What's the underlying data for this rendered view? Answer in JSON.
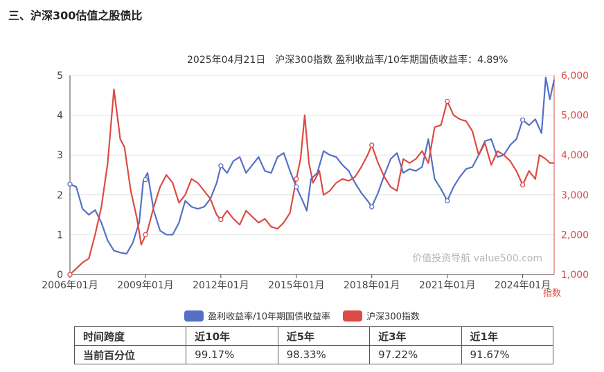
{
  "section_title": "三、沪深300估值之股债比",
  "subtitle": "2025年04月21日　沪深300指数 盈利收益率/10年期国债收益率：4.89%",
  "watermark": "价值投资导航 value500.com",
  "legend": [
    {
      "label": "盈利收益率/10年期国债收益率",
      "color": "#5470c6"
    },
    {
      "label": "沪深300指数",
      "color": "#dc4b43"
    }
  ],
  "table": {
    "header": [
      "时间跨度",
      "近10年",
      "近5年",
      "近3年",
      "近1年"
    ],
    "row": [
      "当前百分位",
      "99.17%",
      "98.33%",
      "97.22%",
      "91.67%"
    ]
  },
  "chart_data": {
    "type": "line",
    "xlabel": "",
    "x_ticks": [
      "2006年01月",
      "2009年01月",
      "2012年01月",
      "2015年01月",
      "2018年01月",
      "2021年01月",
      "2024年01月"
    ],
    "x_range": [
      "2006-01",
      "2025-04"
    ],
    "y_left": {
      "min": 0,
      "max": 5,
      "ticks": [
        0,
        1,
        2,
        3,
        4,
        5
      ],
      "color": "#333333"
    },
    "y_right": {
      "min": 1000,
      "max": 6000,
      "ticks": [
        "1,000",
        "2,000",
        "3,000",
        "4,000",
        "5,000",
        "6,000"
      ],
      "label": "指数",
      "color": "#dc4b43"
    },
    "grid": true,
    "series": [
      {
        "name": "盈利收益率/10年期国债收益率",
        "axis": "left",
        "color": "#5470c6",
        "points": [
          [
            "2006-01",
            2.27
          ],
          [
            "2006-04",
            2.2
          ],
          [
            "2006-07",
            1.65
          ],
          [
            "2006-10",
            1.5
          ],
          [
            "2007-01",
            1.62
          ],
          [
            "2007-04",
            1.3
          ],
          [
            "2007-07",
            0.85
          ],
          [
            "2007-10",
            0.6
          ],
          [
            "2008-01",
            0.55
          ],
          [
            "2008-04",
            0.52
          ],
          [
            "2008-07",
            0.8
          ],
          [
            "2008-10",
            1.3
          ],
          [
            "2008-12",
            2.35
          ],
          [
            "2009-02",
            2.55
          ],
          [
            "2009-05",
            1.6
          ],
          [
            "2009-08",
            1.1
          ],
          [
            "2009-11",
            1.0
          ],
          [
            "2010-02",
            1.0
          ],
          [
            "2010-05",
            1.3
          ],
          [
            "2010-08",
            1.85
          ],
          [
            "2010-11",
            1.7
          ],
          [
            "2011-02",
            1.65
          ],
          [
            "2011-05",
            1.7
          ],
          [
            "2011-08",
            1.9
          ],
          [
            "2011-11",
            2.3
          ],
          [
            "2012-01",
            2.73
          ],
          [
            "2012-04",
            2.55
          ],
          [
            "2012-07",
            2.85
          ],
          [
            "2012-10",
            2.95
          ],
          [
            "2013-01",
            2.55
          ],
          [
            "2013-04",
            2.75
          ],
          [
            "2013-07",
            2.95
          ],
          [
            "2013-10",
            2.6
          ],
          [
            "2014-01",
            2.55
          ],
          [
            "2014-04",
            2.95
          ],
          [
            "2014-07",
            3.05
          ],
          [
            "2014-10",
            2.6
          ],
          [
            "2015-01",
            2.2
          ],
          [
            "2015-04",
            1.85
          ],
          [
            "2015-06",
            1.6
          ],
          [
            "2015-08",
            2.4
          ],
          [
            "2015-11",
            2.55
          ],
          [
            "2016-02",
            3.1
          ],
          [
            "2016-05",
            3.0
          ],
          [
            "2016-08",
            2.95
          ],
          [
            "2016-11",
            2.75
          ],
          [
            "2017-02",
            2.6
          ],
          [
            "2017-05",
            2.3
          ],
          [
            "2017-08",
            2.05
          ],
          [
            "2017-11",
            1.85
          ],
          [
            "2018-01",
            1.7
          ],
          [
            "2018-04",
            2.05
          ],
          [
            "2018-07",
            2.5
          ],
          [
            "2018-10",
            2.9
          ],
          [
            "2019-01",
            3.05
          ],
          [
            "2019-04",
            2.55
          ],
          [
            "2019-07",
            2.65
          ],
          [
            "2019-10",
            2.6
          ],
          [
            "2020-01",
            2.7
          ],
          [
            "2020-04",
            3.4
          ],
          [
            "2020-07",
            2.4
          ],
          [
            "2020-10",
            2.15
          ],
          [
            "2021-01",
            1.85
          ],
          [
            "2021-04",
            2.2
          ],
          [
            "2021-07",
            2.45
          ],
          [
            "2021-10",
            2.65
          ],
          [
            "2022-01",
            2.7
          ],
          [
            "2022-04",
            3.0
          ],
          [
            "2022-07",
            3.35
          ],
          [
            "2022-10",
            3.4
          ],
          [
            "2023-01",
            2.95
          ],
          [
            "2023-04",
            3.0
          ],
          [
            "2023-07",
            3.25
          ],
          [
            "2023-10",
            3.4
          ],
          [
            "2024-01",
            3.88
          ],
          [
            "2024-04",
            3.75
          ],
          [
            "2024-07",
            3.9
          ],
          [
            "2024-10",
            3.55
          ],
          [
            "2024-12",
            4.95
          ],
          [
            "2025-02",
            4.4
          ],
          [
            "2025-04",
            4.89
          ]
        ]
      },
      {
        "name": "沪深300指数",
        "axis": "right",
        "color": "#dc4b43",
        "points": [
          [
            "2006-01",
            1000
          ],
          [
            "2006-04",
            1150
          ],
          [
            "2006-07",
            1300
          ],
          [
            "2006-10",
            1400
          ],
          [
            "2007-01",
            2000
          ],
          [
            "2007-04",
            2700
          ],
          [
            "2007-07",
            3800
          ],
          [
            "2007-10",
            5650
          ],
          [
            "2008-01",
            4400
          ],
          [
            "2008-03",
            4200
          ],
          [
            "2008-06",
            3100
          ],
          [
            "2008-09",
            2400
          ],
          [
            "2008-11",
            1750
          ],
          [
            "2009-02",
            2100
          ],
          [
            "2009-05",
            2700
          ],
          [
            "2009-08",
            3200
          ],
          [
            "2009-11",
            3500
          ],
          [
            "2010-02",
            3300
          ],
          [
            "2010-05",
            2800
          ],
          [
            "2010-08",
            3000
          ],
          [
            "2010-11",
            3400
          ],
          [
            "2011-02",
            3300
          ],
          [
            "2011-05",
            3100
          ],
          [
            "2011-08",
            2900
          ],
          [
            "2011-11",
            2500
          ],
          [
            "2012-01",
            2380
          ],
          [
            "2012-04",
            2600
          ],
          [
            "2012-07",
            2400
          ],
          [
            "2012-10",
            2250
          ],
          [
            "2013-01",
            2600
          ],
          [
            "2013-04",
            2450
          ],
          [
            "2013-07",
            2300
          ],
          [
            "2013-10",
            2400
          ],
          [
            "2014-01",
            2200
          ],
          [
            "2014-04",
            2150
          ],
          [
            "2014-07",
            2300
          ],
          [
            "2014-10",
            2550
          ],
          [
            "2015-01",
            3400
          ],
          [
            "2015-03",
            3900
          ],
          [
            "2015-05",
            5000
          ],
          [
            "2015-07",
            3800
          ],
          [
            "2015-09",
            3300
          ],
          [
            "2015-12",
            3600
          ],
          [
            "2016-02",
            3000
          ],
          [
            "2016-05",
            3100
          ],
          [
            "2016-08",
            3300
          ],
          [
            "2016-11",
            3400
          ],
          [
            "2017-02",
            3350
          ],
          [
            "2017-05",
            3450
          ],
          [
            "2017-08",
            3700
          ],
          [
            "2017-11",
            4000
          ],
          [
            "2018-01",
            4250
          ],
          [
            "2018-04",
            3800
          ],
          [
            "2018-07",
            3450
          ],
          [
            "2018-10",
            3200
          ],
          [
            "2019-01",
            3100
          ],
          [
            "2019-04",
            3900
          ],
          [
            "2019-07",
            3800
          ],
          [
            "2019-10",
            3900
          ],
          [
            "2020-01",
            4100
          ],
          [
            "2020-04",
            3800
          ],
          [
            "2020-07",
            4700
          ],
          [
            "2020-10",
            4750
          ],
          [
            "2021-01",
            5350
          ],
          [
            "2021-04",
            5000
          ],
          [
            "2021-07",
            4900
          ],
          [
            "2021-10",
            4850
          ],
          [
            "2022-01",
            4600
          ],
          [
            "2022-04",
            4000
          ],
          [
            "2022-07",
            4300
          ],
          [
            "2022-10",
            3750
          ],
          [
            "2023-01",
            4100
          ],
          [
            "2023-04",
            4000
          ],
          [
            "2023-07",
            3850
          ],
          [
            "2023-10",
            3600
          ],
          [
            "2024-01",
            3250
          ],
          [
            "2024-04",
            3600
          ],
          [
            "2024-07",
            3400
          ],
          [
            "2024-09",
            4000
          ],
          [
            "2024-12",
            3900
          ],
          [
            "2025-02",
            3800
          ],
          [
            "2025-04",
            3800
          ]
        ]
      }
    ],
    "markers": [
      {
        "series": 0,
        "x": "2006-01",
        "y": 2.27
      },
      {
        "series": 0,
        "x": "2009-01",
        "y": 2.38
      },
      {
        "series": 0,
        "x": "2012-01",
        "y": 2.73
      },
      {
        "series": 0,
        "x": "2015-01",
        "y": 2.2
      },
      {
        "series": 0,
        "x": "2018-01",
        "y": 1.7
      },
      {
        "series": 0,
        "x": "2021-01",
        "y": 1.85
      },
      {
        "series": 0,
        "x": "2024-01",
        "y": 3.88
      },
      {
        "series": 1,
        "x": "2006-01",
        "y": 1000
      },
      {
        "series": 1,
        "x": "2009-01",
        "y": 2000
      },
      {
        "series": 1,
        "x": "2012-01",
        "y": 2380
      },
      {
        "series": 1,
        "x": "2015-01",
        "y": 3400
      },
      {
        "series": 1,
        "x": "2018-01",
        "y": 4250
      },
      {
        "series": 1,
        "x": "2021-01",
        "y": 5350
      },
      {
        "series": 1,
        "x": "2024-01",
        "y": 3250
      }
    ]
  }
}
